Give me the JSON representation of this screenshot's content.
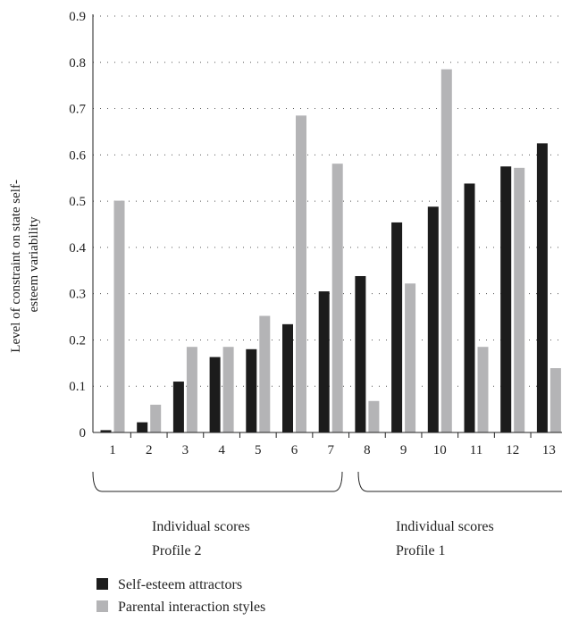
{
  "chart_data": {
    "type": "bar",
    "categories": [
      "1",
      "2",
      "3",
      "4",
      "5",
      "6",
      "7",
      "8",
      "9",
      "10",
      "11",
      "12",
      "13"
    ],
    "series": [
      {
        "name": "Self-esteem attractors",
        "color": "#1c1c1c",
        "values": [
          0.005,
          0.022,
          0.11,
          0.163,
          0.18,
          0.234,
          0.305,
          0.338,
          0.454,
          0.488,
          0.538,
          0.575,
          0.625
        ]
      },
      {
        "name": "Parental interaction styles",
        "color": "#b4b4b6",
        "values": [
          0.501,
          0.06,
          0.185,
          0.185,
          0.252,
          0.685,
          0.581,
          0.068,
          0.322,
          0.785,
          0.185,
          0.572,
          0.139
        ]
      }
    ],
    "ylabel_lines": [
      "Level of constraint on state self-",
      "esteem variability"
    ],
    "ylim": [
      0,
      0.9
    ],
    "yticks": [
      "0",
      "0.1",
      "0.2",
      "0.3",
      "0.4",
      "0.5",
      "0.6",
      "0.7",
      "0.8",
      "0.9"
    ],
    "grid": "dotted-horizontal",
    "legend_position": "bottom-left",
    "groups": [
      {
        "categories": [
          "1",
          "7"
        ],
        "lines": [
          "Individual scores",
          "Profile 2"
        ]
      },
      {
        "categories": [
          "8",
          "13"
        ],
        "lines": [
          "Individual scores",
          "Profile 1"
        ]
      }
    ]
  }
}
